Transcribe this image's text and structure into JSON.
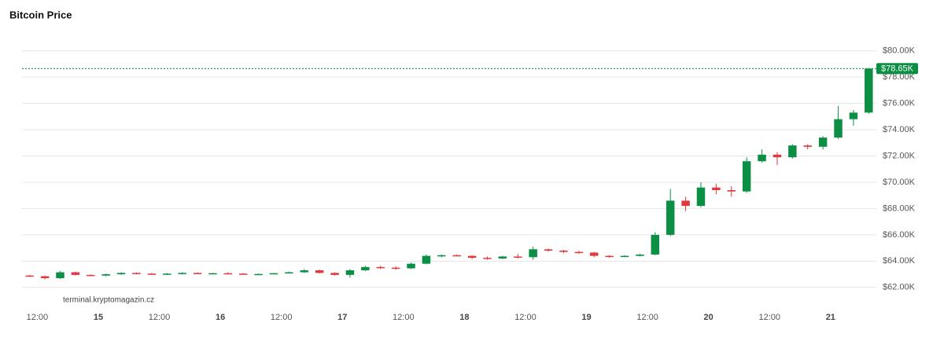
{
  "chart_data": {
    "type": "candlestick",
    "title": "Bitcoin Price",
    "source": "terminal.kryptomagazin.cz",
    "categories": [
      null,
      "12:00",
      null,
      null,
      null,
      "15",
      null,
      null,
      null,
      "12:00",
      null,
      null,
      null,
      "16",
      null,
      null,
      null,
      "12:00",
      null,
      null,
      null,
      "17",
      null,
      null,
      null,
      "12:00",
      null,
      null,
      null,
      "18",
      null,
      null,
      null,
      "12:00",
      null,
      null,
      null,
      "19",
      null,
      null,
      null,
      "12:00",
      null,
      null,
      null,
      "20",
      null,
      null,
      null,
      "12:00",
      null,
      null,
      null,
      "21",
      null,
      null
    ],
    "open": [
      62900,
      62850,
      62700,
      63150,
      62950,
      62900,
      63000,
      63100,
      63050,
      63000,
      63050,
      63100,
      63050,
      63080,
      63050,
      63000,
      63020,
      63080,
      63150,
      63300,
      63100,
      62950,
      63300,
      63550,
      63500,
      63450,
      63800,
      64400,
      64450,
      64400,
      64250,
      64200,
      64350,
      64300,
      64900,
      64800,
      64700,
      64650,
      64400,
      64350,
      64400,
      64500,
      66000,
      68600,
      68200,
      69600,
      69400,
      69300,
      71600,
      72100,
      71900,
      72800,
      72700,
      73400,
      74800,
      75300
    ],
    "high": [
      62950,
      62900,
      63250,
      63200,
      63000,
      63050,
      63150,
      63150,
      63100,
      63100,
      63150,
      63150,
      63100,
      63150,
      63100,
      63050,
      63100,
      63200,
      63400,
      63350,
      63150,
      63400,
      63650,
      63650,
      63600,
      63900,
      64500,
      64500,
      64500,
      64450,
      64350,
      64400,
      64550,
      65100,
      64950,
      64850,
      64800,
      64700,
      64450,
      64450,
      64550,
      66200,
      69500,
      68900,
      70000,
      69900,
      69700,
      71900,
      72500,
      72300,
      72900,
      72900,
      73500,
      75800,
      75500,
      78700
    ],
    "low": [
      62800,
      62600,
      62650,
      62900,
      62850,
      62850,
      62950,
      63000,
      62950,
      62950,
      63000,
      63000,
      63000,
      63000,
      62980,
      62950,
      63000,
      63050,
      63100,
      63050,
      62900,
      62750,
      63250,
      63400,
      63350,
      63400,
      63750,
      64300,
      64350,
      64150,
      64100,
      64150,
      64200,
      64100,
      64700,
      64600,
      64550,
      64300,
      64250,
      64300,
      64350,
      64450,
      65900,
      67800,
      68100,
      69100,
      68900,
      69200,
      71500,
      71300,
      71800,
      72500,
      72500,
      73300,
      74300,
      75200
    ],
    "close": [
      62850,
      62700,
      63150,
      62950,
      62900,
      63000,
      63100,
      63050,
      63000,
      63050,
      63100,
      63050,
      63080,
      63050,
      63000,
      63020,
      63080,
      63150,
      63300,
      63100,
      62950,
      63300,
      63550,
      63500,
      63450,
      63800,
      64400,
      64450,
      64400,
      64250,
      64200,
      64350,
      64300,
      64900,
      64800,
      64700,
      64650,
      64400,
      64350,
      64400,
      64500,
      66000,
      68600,
      68200,
      69600,
      69400,
      69300,
      71600,
      72100,
      71900,
      72800,
      72700,
      73400,
      74800,
      75300,
      78650
    ],
    "up_color": "#0b8f44",
    "down_color": "#e0393e",
    "ylim": [
      60850,
      81000
    ],
    "yticks": [
      {
        "value": 62000,
        "label": "$62.00K"
      },
      {
        "value": 64000,
        "label": "$64.00K"
      },
      {
        "value": 66000,
        "label": "$66.00K"
      },
      {
        "value": 68000,
        "label": "$68.00K"
      },
      {
        "value": 70000,
        "label": "$70.00K"
      },
      {
        "value": 72000,
        "label": "$72.00K"
      },
      {
        "value": 74000,
        "label": "$74.00K"
      },
      {
        "value": 76000,
        "label": "$76.00K"
      },
      {
        "value": 78000,
        "label": "$78.00K"
      },
      {
        "value": 80000,
        "label": "$80.00K"
      }
    ],
    "grid": true,
    "last_price": {
      "value": 78650,
      "label": "$78.65K"
    }
  }
}
